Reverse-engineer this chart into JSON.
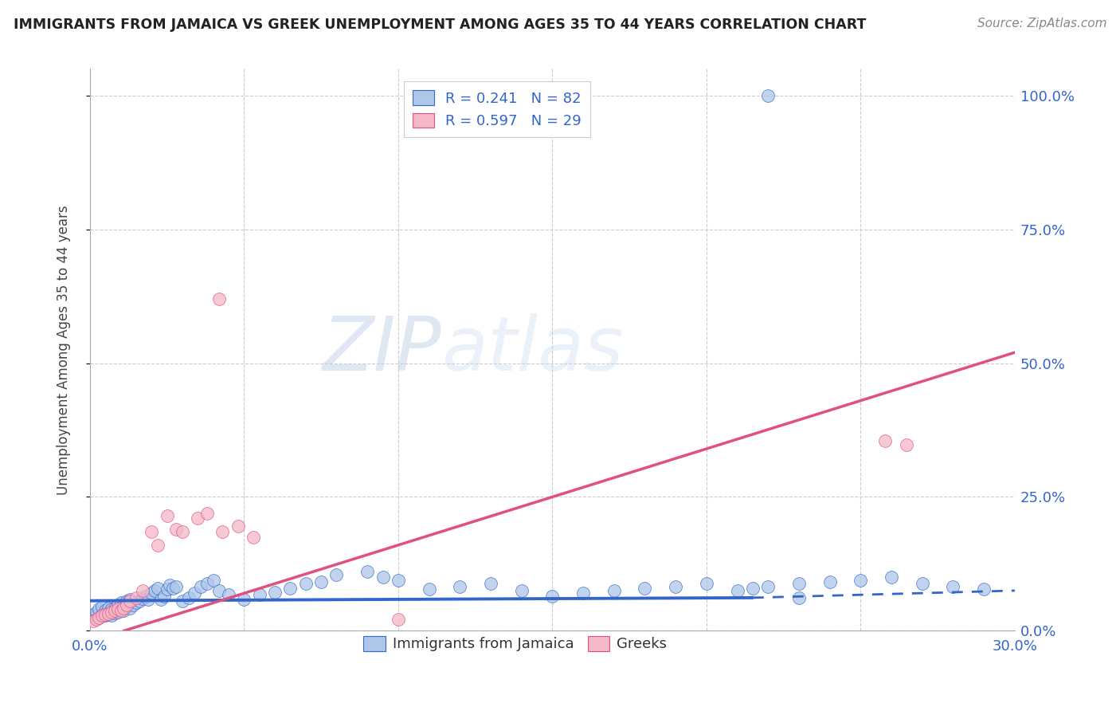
{
  "title": "IMMIGRANTS FROM JAMAICA VS GREEK UNEMPLOYMENT AMONG AGES 35 TO 44 YEARS CORRELATION CHART",
  "source": "Source: ZipAtlas.com",
  "ylabel": "Unemployment Among Ages 35 to 44 years",
  "xlim": [
    0.0,
    0.3
  ],
  "ylim": [
    0.0,
    1.05
  ],
  "xticks": [
    0.0,
    0.05,
    0.1,
    0.15,
    0.2,
    0.25,
    0.3
  ],
  "yticks_right": [
    0.0,
    0.25,
    0.5,
    0.75,
    1.0
  ],
  "ytick_labels_right": [
    "0.0%",
    "25.0%",
    "50.0%",
    "75.0%",
    "100.0%"
  ],
  "blue_color": "#aec6e8",
  "pink_color": "#f4b8c8",
  "blue_line_color": "#3366cc",
  "pink_line_color": "#e05080",
  "blue_R": 0.241,
  "blue_N": 82,
  "pink_R": 0.597,
  "pink_N": 29,
  "legend_label_blue": "Immigrants from Jamaica",
  "legend_label_pink": "Greeks",
  "blue_trend_x0": 0.0,
  "blue_trend_y0": 0.028,
  "blue_trend_x1": 0.3,
  "blue_trend_y1": 0.075,
  "blue_solid_cutoff": 0.215,
  "pink_trend_x0": 0.0,
  "pink_trend_y0": -0.02,
  "pink_trend_x1": 0.3,
  "pink_trend_y1": 0.52,
  "blue_x": [
    0.001,
    0.002,
    0.002,
    0.003,
    0.003,
    0.004,
    0.004,
    0.005,
    0.005,
    0.005,
    0.006,
    0.006,
    0.006,
    0.007,
    0.007,
    0.008,
    0.008,
    0.009,
    0.009,
    0.01,
    0.01,
    0.011,
    0.011,
    0.012,
    0.012,
    0.013,
    0.013,
    0.014,
    0.015,
    0.016,
    0.017,
    0.018,
    0.019,
    0.02,
    0.021,
    0.022,
    0.023,
    0.024,
    0.025,
    0.026,
    0.027,
    0.028,
    0.03,
    0.032,
    0.034,
    0.036,
    0.038,
    0.04,
    0.042,
    0.045,
    0.05,
    0.055,
    0.06,
    0.065,
    0.07,
    0.075,
    0.08,
    0.09,
    0.095,
    0.1,
    0.11,
    0.12,
    0.13,
    0.14,
    0.15,
    0.16,
    0.17,
    0.18,
    0.19,
    0.2,
    0.21,
    0.215,
    0.22,
    0.23,
    0.24,
    0.25,
    0.26,
    0.27,
    0.28,
    0.29,
    0.22,
    0.23
  ],
  "blue_y": [
    0.03,
    0.028,
    0.035,
    0.025,
    0.04,
    0.03,
    0.045,
    0.028,
    0.038,
    0.032,
    0.03,
    0.035,
    0.042,
    0.028,
    0.04,
    0.033,
    0.042,
    0.035,
    0.048,
    0.04,
    0.052,
    0.038,
    0.05,
    0.045,
    0.055,
    0.042,
    0.058,
    0.048,
    0.052,
    0.055,
    0.06,
    0.065,
    0.058,
    0.07,
    0.075,
    0.08,
    0.058,
    0.065,
    0.078,
    0.085,
    0.08,
    0.082,
    0.055,
    0.062,
    0.07,
    0.082,
    0.088,
    0.095,
    0.075,
    0.068,
    0.058,
    0.068,
    0.072,
    0.08,
    0.088,
    0.092,
    0.105,
    0.11,
    0.1,
    0.095,
    0.078,
    0.082,
    0.088,
    0.075,
    0.065,
    0.07,
    0.075,
    0.08,
    0.082,
    0.088,
    0.075,
    0.08,
    0.082,
    0.088,
    0.092,
    0.095,
    0.1,
    0.088,
    0.082,
    0.078,
    1.0,
    0.062
  ],
  "pink_x": [
    0.001,
    0.002,
    0.003,
    0.004,
    0.005,
    0.006,
    0.007,
    0.008,
    0.009,
    0.01,
    0.011,
    0.012,
    0.013,
    0.015,
    0.017,
    0.02,
    0.022,
    0.025,
    0.028,
    0.03,
    0.035,
    0.038,
    0.043,
    0.048,
    0.053,
    0.1,
    0.258,
    0.265,
    0.042
  ],
  "pink_y": [
    0.018,
    0.022,
    0.025,
    0.028,
    0.03,
    0.032,
    0.035,
    0.038,
    0.04,
    0.038,
    0.042,
    0.048,
    0.055,
    0.062,
    0.075,
    0.185,
    0.16,
    0.215,
    0.19,
    0.185,
    0.21,
    0.22,
    0.185,
    0.195,
    0.175,
    0.022,
    0.355,
    0.348,
    0.62
  ]
}
